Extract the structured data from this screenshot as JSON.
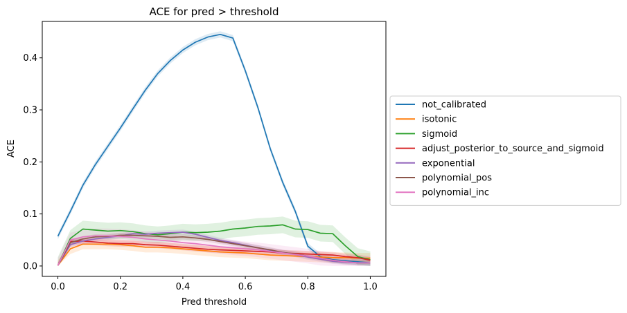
{
  "chart_data": {
    "type": "line",
    "title": "ACE for pred > threshold",
    "xlabel": "Pred threshold",
    "ylabel": "ACE",
    "xlim": [
      -0.05,
      1.05
    ],
    "ylim": [
      -0.02,
      0.47
    ],
    "xticks": [
      0.0,
      0.2,
      0.4,
      0.6,
      0.8,
      1.0
    ],
    "xtick_labels": [
      "0.0",
      "0.2",
      "0.4",
      "0.6",
      "0.8",
      "1.0"
    ],
    "yticks": [
      0.0,
      0.1,
      0.2,
      0.3,
      0.4
    ],
    "ytick_labels": [
      "0.0",
      "0.1",
      "0.2",
      "0.3",
      "0.4"
    ],
    "grid": false,
    "legend_position": "outside-right",
    "x": [
      0.0,
      0.04,
      0.08,
      0.12,
      0.16,
      0.2,
      0.24,
      0.28,
      0.32,
      0.36,
      0.4,
      0.44,
      0.48,
      0.52,
      0.56,
      0.6,
      0.64,
      0.68,
      0.72,
      0.76,
      0.8,
      0.84,
      0.88,
      0.92,
      0.96,
      1.0
    ],
    "series": [
      {
        "name": "not_calibrated",
        "color": "#1f77b4",
        "values": [
          0.057,
          0.105,
          0.155,
          0.195,
          0.23,
          0.265,
          0.302,
          0.338,
          0.37,
          0.395,
          0.415,
          0.43,
          0.44,
          0.445,
          0.438,
          0.375,
          0.305,
          0.225,
          0.16,
          0.105,
          0.038,
          0.018,
          0.012,
          0.01,
          0.008,
          0.006
        ],
        "band": 0.006
      },
      {
        "name": "isotonic",
        "color": "#ff7f0e",
        "values": [
          0.001,
          0.033,
          0.042,
          0.042,
          0.042,
          0.041,
          0.039,
          0.036,
          0.036,
          0.035,
          0.033,
          0.031,
          0.029,
          0.027,
          0.026,
          0.025,
          0.023,
          0.021,
          0.02,
          0.019,
          0.018,
          0.017,
          0.016,
          0.016,
          0.015,
          0.015
        ],
        "band": 0.01
      },
      {
        "name": "sigmoid",
        "color": "#2ca02c",
        "values": [
          0.001,
          0.053,
          0.071,
          0.069,
          0.067,
          0.068,
          0.066,
          0.062,
          0.06,
          0.062,
          0.065,
          0.064,
          0.065,
          0.067,
          0.071,
          0.073,
          0.076,
          0.077,
          0.079,
          0.071,
          0.07,
          0.063,
          0.062,
          0.039,
          0.018,
          0.012
        ],
        "band": 0.016
      },
      {
        "name": "adjust_posterior_to_source_and_sigmoid",
        "color": "#d62728",
        "values": [
          0.001,
          0.047,
          0.048,
          0.046,
          0.044,
          0.043,
          0.043,
          0.041,
          0.04,
          0.038,
          0.036,
          0.034,
          0.032,
          0.031,
          0.03,
          0.029,
          0.028,
          0.027,
          0.025,
          0.024,
          0.023,
          0.022,
          0.021,
          0.018,
          0.016,
          0.011
        ],
        "band": 0.006
      },
      {
        "name": "exponential",
        "color": "#9467bd",
        "values": [
          0.001,
          0.041,
          0.048,
          0.052,
          0.055,
          0.058,
          0.062,
          0.061,
          0.063,
          0.064,
          0.065,
          0.061,
          0.055,
          0.049,
          0.045,
          0.04,
          0.035,
          0.03,
          0.026,
          0.022,
          0.017,
          0.013,
          0.009,
          0.007,
          0.006,
          0.006
        ],
        "band": 0.005
      },
      {
        "name": "polynomial_pos",
        "color": "#8c564b",
        "values": [
          0.001,
          0.045,
          0.052,
          0.056,
          0.057,
          0.059,
          0.059,
          0.058,
          0.057,
          0.055,
          0.056,
          0.054,
          0.051,
          0.047,
          0.043,
          0.039,
          0.035,
          0.031,
          0.026,
          0.023,
          0.019,
          0.015,
          0.011,
          0.008,
          0.006,
          0.006
        ],
        "band": 0.005
      },
      {
        "name": "polynomial_inc",
        "color": "#e377c2",
        "values": [
          0.001,
          0.05,
          0.056,
          0.058,
          0.058,
          0.057,
          0.055,
          0.052,
          0.05,
          0.048,
          0.045,
          0.043,
          0.04,
          0.037,
          0.035,
          0.033,
          0.031,
          0.028,
          0.025,
          0.022,
          0.019,
          0.015,
          0.011,
          0.008,
          0.006,
          0.006
        ],
        "band": 0.014
      }
    ]
  }
}
